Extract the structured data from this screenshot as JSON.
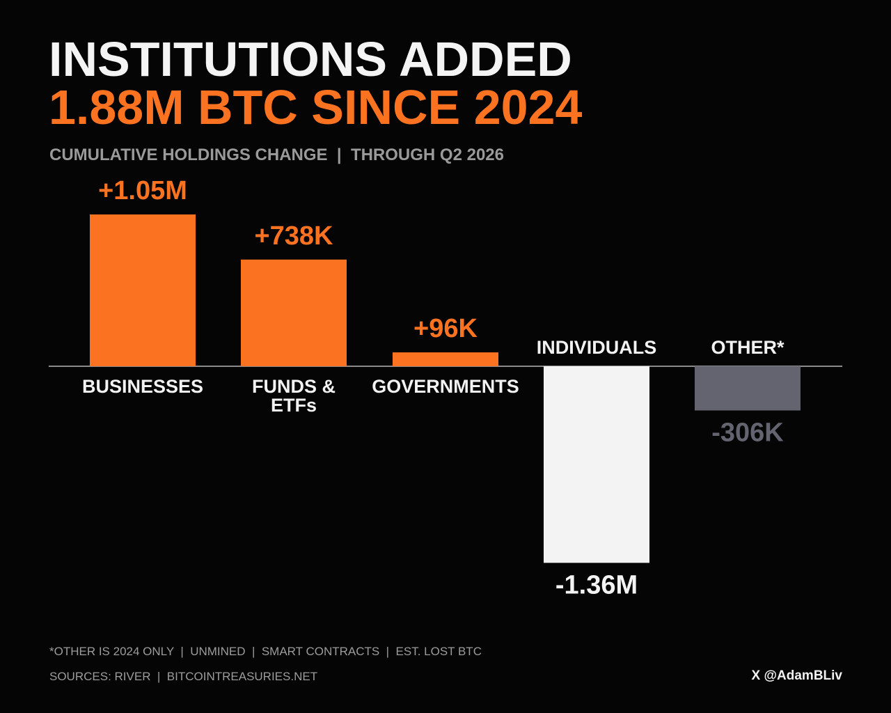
{
  "header": {
    "title_line1": "INSTITUTIONS ADDED",
    "title_line2": "1.88M BTC SINCE 2024",
    "subtitle": "CUMULATIVE HOLDINGS CHANGE  |  THROUGH Q2 2026"
  },
  "chart_data": {
    "type": "bar",
    "categories": [
      "BUSINESSES",
      "FUNDS & ETFs",
      "GOVERNMENTS",
      "INDIVIDUALS",
      "OTHER*"
    ],
    "values": [
      1050000,
      738000,
      96000,
      -1360000,
      -306000
    ],
    "value_labels": [
      "+1.05M",
      "+738K",
      "+96K",
      "-1.36M",
      "-306K"
    ],
    "colors": [
      "#fb7320",
      "#fb7320",
      "#fb7320",
      "#f3f3f3",
      "#636470"
    ],
    "label_colors": [
      "#fb7320",
      "#fb7320",
      "#fb7320",
      "#f3f3f3",
      "#636470"
    ],
    "title": "INSTITUTIONS ADDED 1.88M BTC SINCE 2024",
    "xlabel": "",
    "ylabel": "",
    "grid": false,
    "legend": "none"
  },
  "colors": {
    "accent": "#fb7320",
    "background": "#050505",
    "baseline": "#8a8a8a",
    "muted_text": "#9a9a9a"
  },
  "footer": {
    "footnote": "*OTHER IS 2024 ONLY  |  UNMINED  |  SMART CONTRACTS  |  EST. LOST BTC",
    "sources": "SOURCES: RIVER  |  BITCOINTREASURIES.NET",
    "handle": "X @AdamBLiv"
  }
}
